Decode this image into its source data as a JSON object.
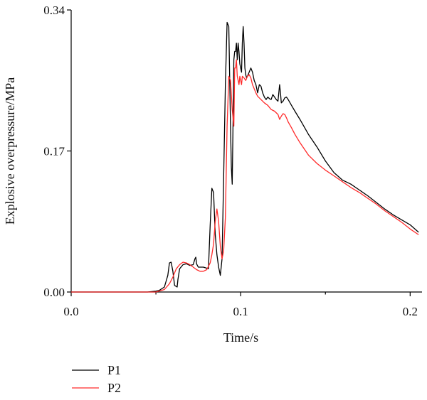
{
  "chart_data": {
    "type": "line",
    "xlabel": "Time/s",
    "ylabel": "Explosive overpressure/MPa",
    "xlim": [
      0.0,
      0.207
    ],
    "ylim": [
      0.0,
      0.34
    ],
    "x_ticks": [
      "0.0",
      "0.1",
      "0.2"
    ],
    "x_tick_values": [
      0.0,
      0.1,
      0.2
    ],
    "y_ticks": [
      "0.00",
      "0.17",
      "0.34"
    ],
    "y_tick_values": [
      0.0,
      0.17,
      0.34
    ],
    "grid": false,
    "legend_position": "bottom-left",
    "series": [
      {
        "name": "P1",
        "color": "#000000",
        "x": [
          0.0,
          0.03,
          0.045,
          0.05,
          0.052,
          0.055,
          0.057,
          0.058,
          0.059,
          0.06,
          0.061,
          0.0625,
          0.063,
          0.064,
          0.066,
          0.068,
          0.07,
          0.072,
          0.073,
          0.0735,
          0.074,
          0.075,
          0.078,
          0.081,
          0.082,
          0.083,
          0.084,
          0.085,
          0.086,
          0.087,
          0.088,
          0.089,
          0.09,
          0.091,
          0.092,
          0.093,
          0.094,
          0.0945,
          0.095,
          0.0955,
          0.096,
          0.0965,
          0.097,
          0.0975,
          0.098,
          0.0985,
          0.099,
          0.0995,
          0.1,
          0.1005,
          0.101,
          0.1015,
          0.102,
          0.1025,
          0.103,
          0.1035,
          0.104,
          0.105,
          0.106,
          0.107,
          0.108,
          0.109,
          0.11,
          0.111,
          0.112,
          0.113,
          0.114,
          0.115,
          0.116,
          0.117,
          0.118,
          0.119,
          0.12,
          0.121,
          0.122,
          0.123,
          0.1235,
          0.124,
          0.125,
          0.126,
          0.127,
          0.128,
          0.13,
          0.132,
          0.135,
          0.14,
          0.145,
          0.15,
          0.155,
          0.16,
          0.165,
          0.17,
          0.175,
          0.18,
          0.185,
          0.19,
          0.195,
          0.2,
          0.205
        ],
        "y": [
          0.0,
          0.0,
          0.0,
          0.001,
          0.002,
          0.006,
          0.02,
          0.035,
          0.036,
          0.025,
          0.008,
          0.006,
          0.015,
          0.028,
          0.033,
          0.034,
          0.032,
          0.033,
          0.04,
          0.042,
          0.034,
          0.03,
          0.03,
          0.028,
          0.08,
          0.125,
          0.12,
          0.07,
          0.045,
          0.03,
          0.02,
          0.04,
          0.14,
          0.25,
          0.325,
          0.32,
          0.2,
          0.15,
          0.13,
          0.2,
          0.28,
          0.29,
          0.29,
          0.3,
          0.28,
          0.3,
          0.29,
          0.275,
          0.27,
          0.265,
          0.3,
          0.32,
          0.3,
          0.27,
          0.262,
          0.258,
          0.26,
          0.265,
          0.27,
          0.265,
          0.255,
          0.25,
          0.24,
          0.25,
          0.248,
          0.24,
          0.235,
          0.232,
          0.235,
          0.233,
          0.232,
          0.238,
          0.235,
          0.232,
          0.23,
          0.25,
          0.24,
          0.228,
          0.23,
          0.234,
          0.235,
          0.232,
          0.225,
          0.218,
          0.208,
          0.19,
          0.175,
          0.158,
          0.144,
          0.135,
          0.13,
          0.123,
          0.116,
          0.108,
          0.1,
          0.093,
          0.087,
          0.081,
          0.072
        ]
      },
      {
        "name": "P2",
        "color": "#ff2a2a",
        "x": [
          0.0,
          0.03,
          0.04,
          0.045,
          0.05,
          0.055,
          0.058,
          0.06,
          0.062,
          0.064,
          0.066,
          0.068,
          0.07,
          0.072,
          0.074,
          0.076,
          0.078,
          0.08,
          0.082,
          0.083,
          0.084,
          0.085,
          0.086,
          0.087,
          0.088,
          0.089,
          0.09,
          0.091,
          0.092,
          0.093,
          0.094,
          0.095,
          0.096,
          0.0965,
          0.097,
          0.0975,
          0.098,
          0.0985,
          0.099,
          0.0995,
          0.1,
          0.1005,
          0.101,
          0.102,
          0.103,
          0.104,
          0.105,
          0.106,
          0.107,
          0.108,
          0.109,
          0.11,
          0.112,
          0.114,
          0.116,
          0.118,
          0.12,
          0.122,
          0.123,
          0.124,
          0.125,
          0.126,
          0.127,
          0.128,
          0.13,
          0.132,
          0.135,
          0.14,
          0.145,
          0.15,
          0.155,
          0.16,
          0.165,
          0.17,
          0.175,
          0.18,
          0.185,
          0.19,
          0.195,
          0.2,
          0.205
        ],
        "y": [
          0.0,
          0.0,
          0.0,
          0.0,
          0.0,
          0.003,
          0.01,
          0.018,
          0.028,
          0.033,
          0.036,
          0.035,
          0.033,
          0.03,
          0.027,
          0.025,
          0.025,
          0.027,
          0.035,
          0.045,
          0.058,
          0.085,
          0.1,
          0.085,
          0.055,
          0.04,
          0.05,
          0.09,
          0.2,
          0.26,
          0.255,
          0.22,
          0.2,
          0.27,
          0.27,
          0.28,
          0.26,
          0.255,
          0.25,
          0.26,
          0.255,
          0.25,
          0.26,
          0.258,
          0.255,
          0.26,
          0.262,
          0.258,
          0.25,
          0.245,
          0.24,
          0.236,
          0.232,
          0.228,
          0.225,
          0.22,
          0.218,
          0.214,
          0.208,
          0.212,
          0.215,
          0.214,
          0.21,
          0.205,
          0.198,
          0.19,
          0.18,
          0.165,
          0.155,
          0.147,
          0.14,
          0.133,
          0.126,
          0.12,
          0.113,
          0.106,
          0.098,
          0.091,
          0.084,
          0.076,
          0.069
        ]
      }
    ]
  }
}
